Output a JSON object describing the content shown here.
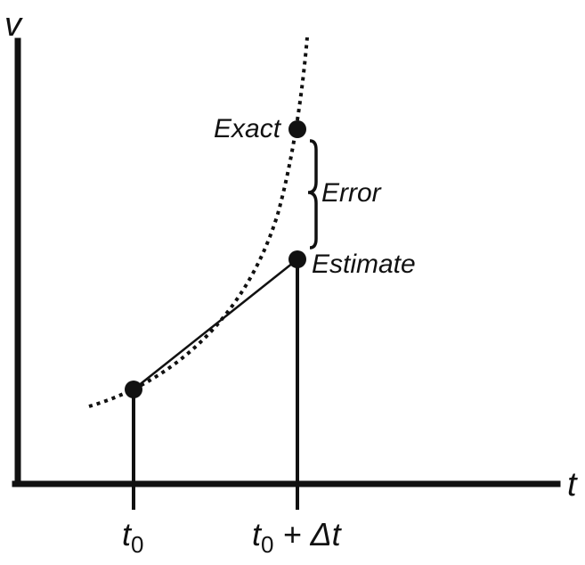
{
  "diagram": {
    "axes": {
      "y_label": "v",
      "x_label": "t"
    },
    "labels": {
      "exact": "Exact",
      "error": "Error",
      "estimate": "Estimate"
    },
    "ticks": {
      "t0_main": "t",
      "t0_sub": "0",
      "t1_main": "t",
      "t1_sub": "0",
      "t1_rest": " + Δt"
    },
    "colors": {
      "ink": "#111111"
    }
  }
}
